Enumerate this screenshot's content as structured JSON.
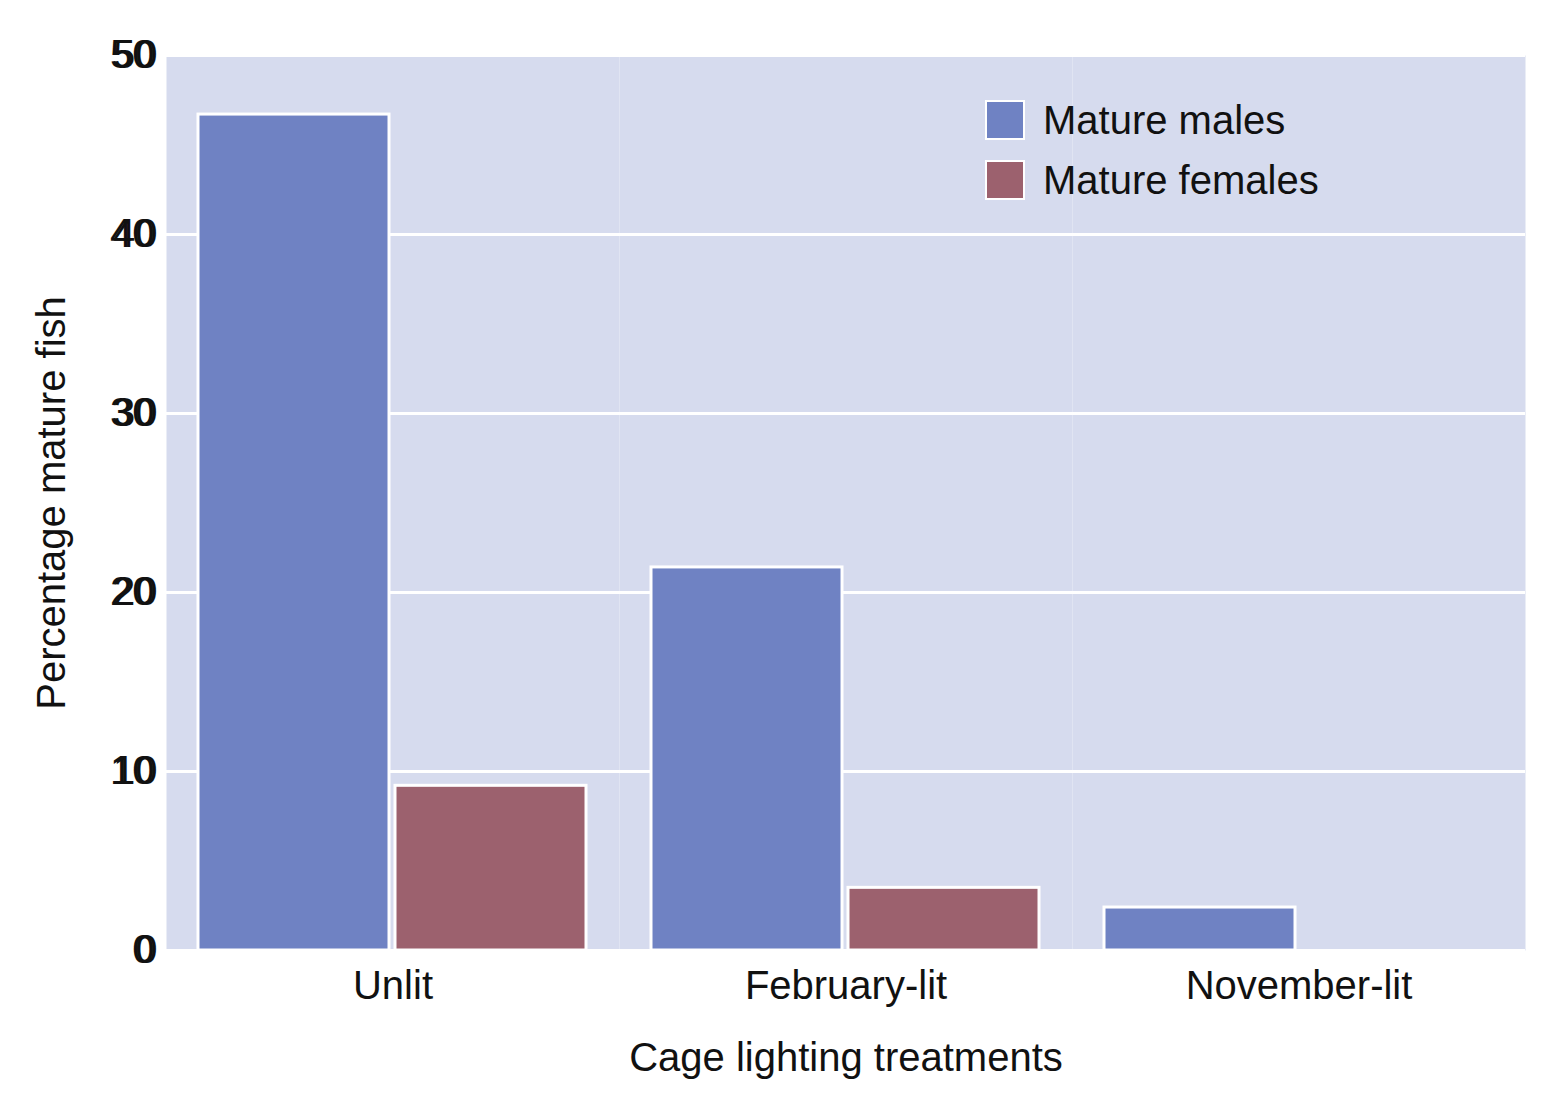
{
  "chart_data": {
    "type": "bar",
    "x_label": "Cage lighting treatments",
    "y_label": "Percentage mature fish",
    "categories": [
      "Unlit",
      "February-lit",
      "November-lit"
    ],
    "series": [
      {
        "name": "Mature males",
        "color": "#6f82c3",
        "values": [
          46.7,
          21.4,
          2.4
        ]
      },
      {
        "name": "Mature females",
        "color": "#9c616e",
        "values": [
          9.2,
          3.5,
          0
        ]
      }
    ],
    "ylim": [
      0,
      50
    ],
    "yticks": [
      0,
      10,
      20,
      30,
      40,
      50
    ],
    "grid": true,
    "legend": "top-right"
  }
}
